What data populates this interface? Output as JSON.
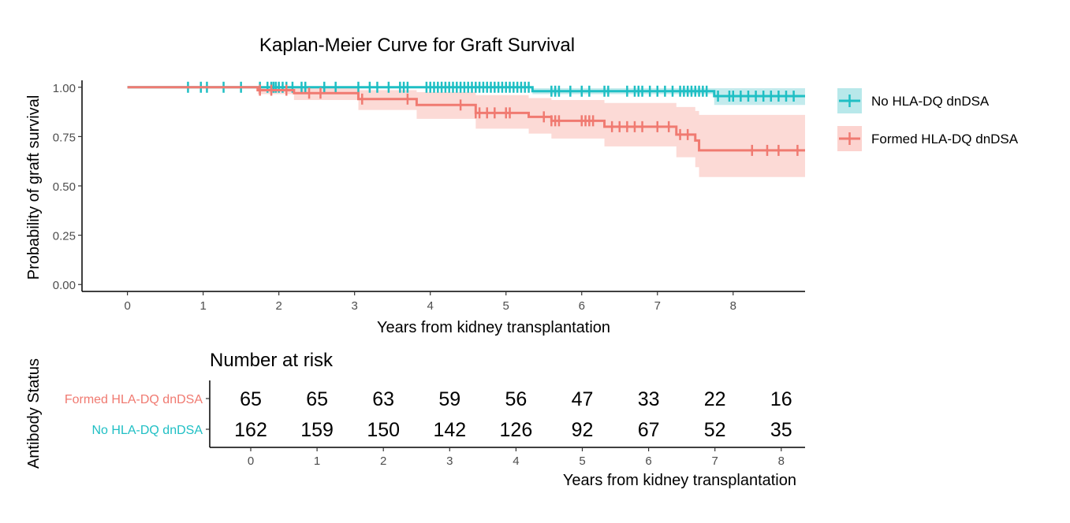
{
  "chart_data": [
    {
      "type": "line",
      "subtype": "kaplan-meier",
      "title": "Kaplan-Meier Curve for Graft Survival",
      "xlabel": "Years from kidney transplantation",
      "ylabel": "Probability of graft survival",
      "xlim": [
        -0.6,
        8.95
      ],
      "ylim": [
        -0.035,
        1.035
      ],
      "xticks": [
        "0",
        "1",
        "2",
        "3",
        "4",
        "5",
        "6",
        "7",
        "8"
      ],
      "yticks": [
        "0.00",
        "0.25",
        "0.50",
        "0.75",
        "1.00"
      ],
      "grid": false,
      "legend_position": "right",
      "series": [
        {
          "name": "No HLA-DQ dnDSA",
          "color": "#1FBFC4",
          "ci_fill": "#B8E8EA",
          "steps": [
            [
              0,
              1.0
            ],
            [
              5.35,
              0.98
            ],
            [
              7.75,
              0.955
            ],
            [
              8.95,
              0.955
            ]
          ],
          "ci": [
            [
              0,
              1.0,
              1.0
            ],
            [
              5.35,
              0.995,
              0.965
            ],
            [
              7.75,
              0.995,
              0.91
            ],
            [
              8.95,
              0.995,
              0.91
            ]
          ],
          "censor": [
            0.8,
            0.97,
            1.05,
            1.27,
            1.5,
            1.75,
            1.85,
            1.9,
            1.93,
            1.96,
            2.0,
            2.05,
            2.1,
            2.18,
            2.3,
            2.35,
            2.6,
            2.75,
            3.05,
            3.2,
            3.3,
            3.45,
            3.6,
            3.65,
            3.7,
            3.95,
            4.0,
            4.05,
            4.1,
            4.15,
            4.2,
            4.25,
            4.3,
            4.35,
            4.4,
            4.45,
            4.5,
            4.55,
            4.6,
            4.65,
            4.7,
            4.75,
            4.8,
            4.85,
            4.9,
            4.95,
            5.0,
            5.05,
            5.1,
            5.15,
            5.2,
            5.25,
            5.3,
            5.6,
            5.65,
            5.7,
            5.85,
            6.0,
            6.1,
            6.3,
            6.35,
            6.6,
            6.7,
            6.75,
            6.8,
            6.9,
            7.0,
            7.1,
            7.2,
            7.3,
            7.35,
            7.4,
            7.45,
            7.5,
            7.55,
            7.6,
            7.65,
            7.8,
            7.95,
            8.0,
            8.1,
            8.2,
            8.3,
            8.4,
            8.5,
            8.6,
            8.7,
            8.8
          ]
        },
        {
          "name": "Formed HLA-DQ dnDSA",
          "color": "#F07A71",
          "ci_fill": "#FCD3CF",
          "steps": [
            [
              0,
              1.0
            ],
            [
              1.72,
              0.985
            ],
            [
              2.2,
              0.97
            ],
            [
              3.05,
              0.94
            ],
            [
              3.82,
              0.91
            ],
            [
              4.6,
              0.87
            ],
            [
              5.3,
              0.85
            ],
            [
              5.6,
              0.83
            ],
            [
              6.3,
              0.8
            ],
            [
              7.25,
              0.76
            ],
            [
              7.5,
              0.73
            ],
            [
              7.55,
              0.68
            ],
            [
              8.95,
              0.68
            ]
          ],
          "ci": [
            [
              0,
              1.0,
              1.0
            ],
            [
              1.72,
              1.0,
              0.965
            ],
            [
              2.2,
              0.995,
              0.935
            ],
            [
              3.05,
              0.985,
              0.885
            ],
            [
              3.82,
              0.975,
              0.84
            ],
            [
              4.6,
              0.96,
              0.79
            ],
            [
              5.3,
              0.945,
              0.765
            ],
            [
              5.6,
              0.935,
              0.74
            ],
            [
              6.3,
              0.92,
              0.7
            ],
            [
              7.25,
              0.9,
              0.645
            ],
            [
              7.5,
              0.88,
              0.595
            ],
            [
              7.55,
              0.86,
              0.545
            ],
            [
              8.95,
              0.86,
              0.545
            ]
          ],
          "censor": [
            1.75,
            1.9,
            2.1,
            2.4,
            2.55,
            3.1,
            3.7,
            4.4,
            4.6,
            4.65,
            4.75,
            4.85,
            5.0,
            5.05,
            5.5,
            5.6,
            5.65,
            5.7,
            6.0,
            6.05,
            6.1,
            6.15,
            6.4,
            6.5,
            6.6,
            6.7,
            6.8,
            7.0,
            7.15,
            7.3,
            7.4,
            8.25,
            8.45,
            8.6,
            8.85
          ]
        }
      ]
    },
    {
      "type": "table",
      "title": "Number at risk",
      "xlabel": "Years from kidney transplantation",
      "ylabel": "Antibody Status",
      "xticks": [
        "0",
        "1",
        "2",
        "3",
        "4",
        "5",
        "6",
        "7",
        "8"
      ],
      "rows": [
        {
          "name": "Formed HLA-DQ dnDSA",
          "color": "#F07A71",
          "values": [
            "65",
            "65",
            "63",
            "59",
            "56",
            "47",
            "33",
            "22",
            "16"
          ]
        },
        {
          "name": "No HLA-DQ dnDSA",
          "color": "#1FBFC4",
          "values": [
            "162",
            "159",
            "150",
            "142",
            "126",
            "92",
            "67",
            "52",
            "35"
          ]
        }
      ]
    }
  ]
}
